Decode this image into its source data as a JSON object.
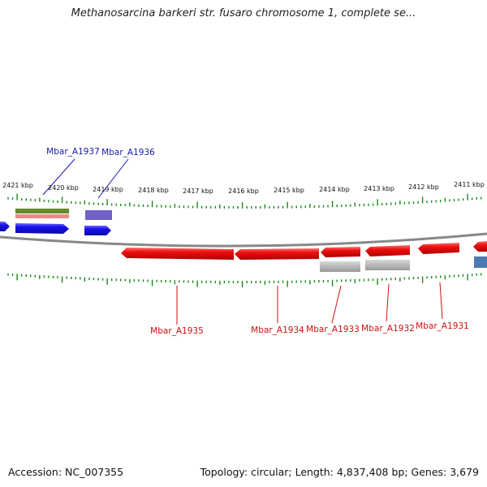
{
  "title": "Methanosarcina barkeri str. fusaro chromosome 1, complete se...",
  "footer": {
    "accession_label": "Accession:",
    "accession_value": "NC_007355",
    "topology_text": "Topology: circular; Length: 4,837,408 bp; Genes: 3,679"
  },
  "axis": {
    "ticks": [
      "2421 kbp",
      "2420 kbp",
      "2419 kbp",
      "2418 kbp",
      "2417 kbp",
      "2416 kbp",
      "2415 kbp",
      "2414 kbp",
      "2413 kbp",
      "2412 kbp",
      "2411 kbp"
    ]
  },
  "genes": {
    "forward_labels": [
      "Mbar_A1937",
      "Mbar_A1936"
    ],
    "reverse_labels": [
      "Mbar_A1935",
      "Mbar_A1934",
      "Mbar_A1933",
      "Mbar_A1932",
      "Mbar_A1931"
    ]
  },
  "colors": {
    "forward_gene": "#1a10ee",
    "reverse_gene": "#ee1111",
    "forward_label": "#1a1aaa",
    "reverse_label": "#cc1111",
    "tick": "#1a8a1a",
    "backbone": "#888888",
    "feature_green": "#6a8a2a",
    "feature_pink": "#e88a8a",
    "feature_purple": "#6a5acd",
    "feature_gray": "#aaaaaa",
    "feature_steelblue": "#4a7ab0"
  }
}
